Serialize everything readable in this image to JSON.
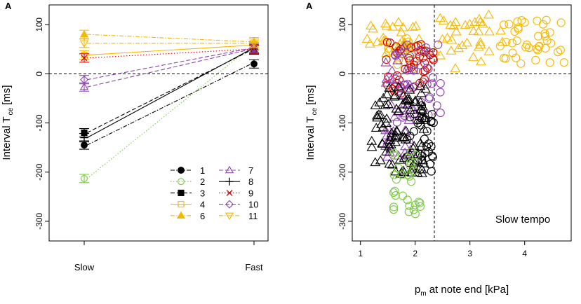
{
  "panels": {
    "left": {
      "label": "A",
      "ylabel_main": "Interval T",
      "ylabel_sub": "ce",
      "ylabel_unit": "[ms]",
      "x_categories": [
        "Slow",
        "Fast"
      ]
    },
    "right": {
      "label": "A",
      "ylabel_main": "Interval T",
      "ylabel_sub": "ce",
      "ylabel_unit": "[ms]",
      "xlabel_main": "p",
      "xlabel_sub": "m",
      "xlabel_rest": " at note end [kPa]",
      "annotation": "Slow tempo"
    }
  },
  "legend": [
    {
      "id": "1",
      "label": "1",
      "color": "#000000",
      "marker": "filled-circle",
      "dash": "dash-dot"
    },
    {
      "id": "2",
      "label": "2",
      "color": "#7ac943",
      "marker": "open-circle",
      "dash": "dotted"
    },
    {
      "id": "3",
      "label": "3",
      "color": "#000000",
      "marker": "filled-square",
      "dash": "dashed"
    },
    {
      "id": "4",
      "label": "4",
      "color": "#f5b800",
      "marker": "open-square",
      "dash": "solid"
    },
    {
      "id": "6",
      "label": "6",
      "color": "#f5b800",
      "marker": "filled-triangle",
      "dash": "dash-dot"
    },
    {
      "id": "7",
      "label": "7",
      "color": "#8e44ad",
      "marker": "open-triangle",
      "dash": "dashed"
    },
    {
      "id": "8",
      "label": "8",
      "color": "#000000",
      "marker": "plus",
      "dash": "solid"
    },
    {
      "id": "9",
      "label": "9",
      "color": "#cc0000",
      "marker": "cross",
      "dash": "dotted"
    },
    {
      "id": "10",
      "label": "10",
      "color": "#8e44ad",
      "marker": "open-diamond",
      "dash": "dashed"
    },
    {
      "id": "11",
      "label": "11",
      "color": "#f5b800",
      "marker": "open-triangle-down",
      "dash": "dash-dot"
    }
  ],
  "chart_data": [
    {
      "type": "line",
      "title": "",
      "xlabel": "",
      "ylabel": "Interval T ce [ms]",
      "categories": [
        "Slow",
        "Fast"
      ],
      "ylim": [
        -340,
        140
      ],
      "yticks": [
        -300,
        -200,
        -100,
        0,
        100
      ],
      "reference_line_y": 0,
      "series": [
        {
          "name": "1",
          "values": [
            -145,
            20
          ]
        },
        {
          "name": "2",
          "values": [
            -213,
            55
          ]
        },
        {
          "name": "3",
          "values": [
            -120,
            48
          ]
        },
        {
          "name": "4",
          "values": [
            38,
            58
          ]
        },
        {
          "name": "6",
          "values": [
            80,
            65
          ]
        },
        {
          "name": "7",
          "values": [
            -27,
            50
          ]
        },
        {
          "name": "8",
          "values": [
            -130,
            50
          ]
        },
        {
          "name": "9",
          "values": [
            32,
            50
          ]
        },
        {
          "name": "10",
          "values": [
            -12,
            52
          ]
        },
        {
          "name": "11",
          "values": [
            62,
            62
          ]
        }
      ]
    },
    {
      "type": "scatter",
      "title": "",
      "xlabel": "pm at note end [kPa]",
      "ylabel": "Interval T ce [ms]",
      "xlim": [
        0.85,
        4.85
      ],
      "ylim": [
        -340,
        140
      ],
      "xticks": [
        1,
        2,
        3,
        4
      ],
      "yticks": [
        -300,
        -200,
        -100,
        0,
        100
      ],
      "reference_line_y": 0,
      "reference_line_x": 2.35,
      "annotation": "Slow tempo",
      "clusters": [
        {
          "name": "yellow-triangles-left",
          "color": "#f5b800",
          "marker": "open-triangle",
          "x_range": [
            1.0,
            2.1
          ],
          "y_range": [
            40,
            105
          ],
          "count": 30
        },
        {
          "name": "yellow-circles-left",
          "color": "#f5b800",
          "marker": "open-circle",
          "x_range": [
            1.5,
            2.2
          ],
          "y_range": [
            10,
            75
          ],
          "count": 14
        },
        {
          "name": "yellow-triangles-right",
          "color": "#f5b800",
          "marker": "open-triangle",
          "x_range": [
            2.35,
            3.6
          ],
          "y_range": [
            10,
            120
          ],
          "count": 34
        },
        {
          "name": "yellow-circles-right",
          "color": "#f5b800",
          "marker": "open-circle",
          "x_range": [
            3.5,
            4.75
          ],
          "y_range": [
            20,
            110
          ],
          "count": 40
        },
        {
          "name": "red-circles",
          "color": "#cc0000",
          "marker": "open-circle",
          "x_range": [
            1.45,
            2.35
          ],
          "y_range": [
            -40,
            65
          ],
          "count": 45
        },
        {
          "name": "purple-triangles",
          "color": "#8e44ad",
          "marker": "open-triangle",
          "x_range": [
            1.45,
            2.0
          ],
          "y_range": [
            -180,
            60
          ],
          "count": 40
        },
        {
          "name": "purple-circles",
          "color": "#8e44ad",
          "marker": "open-circle",
          "x_range": [
            1.5,
            2.5
          ],
          "y_range": [
            -100,
            65
          ],
          "count": 35
        },
        {
          "name": "black-triangles",
          "color": "#000000",
          "marker": "open-triangle",
          "x_range": [
            1.2,
            2.2
          ],
          "y_range": [
            -205,
            -25
          ],
          "count": 90
        },
        {
          "name": "black-circles",
          "color": "#000000",
          "marker": "open-circle",
          "x_range": [
            1.85,
            2.35
          ],
          "y_range": [
            -200,
            -60
          ],
          "count": 35
        },
        {
          "name": "green-circles",
          "color": "#7ac943",
          "marker": "open-circle",
          "x_range": [
            1.6,
            2.15
          ],
          "y_range": [
            -285,
            -150
          ],
          "count": 30
        }
      ]
    }
  ]
}
